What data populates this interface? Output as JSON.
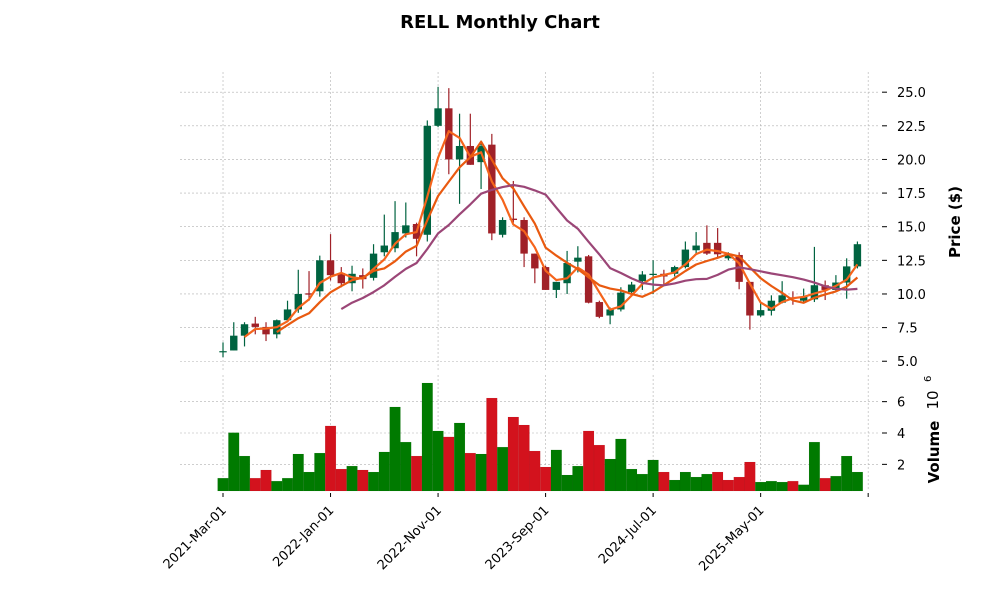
{
  "chart_data": {
    "type": "candlestick",
    "title": "RELL Monthly Chart",
    "ylabel": "Price ($)",
    "volume_label": "Volume",
    "volume_exponent": "10",
    "volume_exponent_power": "6",
    "start_month": "2021-03",
    "ylim": [
      4.2,
      26.5
    ],
    "volume_ylim": [
      0.3,
      7.7
    ],
    "xlim_index": [
      -4,
      61.1
    ],
    "price_ticks": [
      "25.0",
      "22.5",
      "20.0",
      "17.5",
      "15.0",
      "12.5",
      "10.0",
      "7.5",
      "5.0"
    ],
    "volume_ticks": [
      "6",
      "4",
      "2"
    ],
    "x_ticks": [
      {
        "index": 0,
        "label": "2021-Mar-01"
      },
      {
        "index": 10,
        "label": "2022-Jan-01"
      },
      {
        "index": 20,
        "label": "2022-Nov-01"
      },
      {
        "index": 30,
        "label": "2023-Sep-01"
      },
      {
        "index": 40,
        "label": "2024-Jul-01"
      },
      {
        "index": 50,
        "label": "2025-May-01"
      },
      {
        "index": 60,
        "label": ""
      }
    ],
    "moving_averages": [
      3,
      6,
      12
    ],
    "open": [
      5.7,
      5.8,
      6.9,
      7.8,
      7.55,
      7.0,
      8.05,
      8.85,
      10.05,
      10.2,
      12.5,
      11.55,
      10.8,
      11.4,
      11.2,
      13.1,
      13.4,
      14.5,
      15.2,
      14.4,
      22.5,
      23.8,
      20.0,
      21.0,
      19.8,
      21.1,
      14.4,
      15.6,
      15.5,
      13.0,
      12.0,
      10.3,
      10.8,
      12.4,
      12.8,
      9.4,
      8.4,
      8.85,
      10.15,
      10.95,
      11.5,
      11.5,
      11.5,
      12.0,
      13.25,
      13.8,
      13.8,
      12.65,
      12.9,
      10.9,
      8.4,
      8.75,
      9.35,
      9.75,
      9.5,
      9.6,
      10.65,
      10.3,
      10.85,
      12.05
    ],
    "high": [
      6.4,
      7.9,
      7.9,
      8.3,
      7.9,
      8.1,
      9.5,
      11.8,
      11.7,
      12.85,
      14.45,
      12.0,
      12.1,
      11.9,
      13.7,
      15.9,
      16.9,
      16.8,
      15.3,
      22.9,
      25.4,
      25.3,
      23.4,
      23.4,
      21.4,
      21.9,
      15.7,
      18.4,
      15.7,
      13.0,
      12.1,
      10.9,
      13.2,
      13.55,
      12.9,
      9.5,
      9.0,
      10.5,
      10.9,
      11.7,
      12.5,
      11.8,
      12.1,
      13.9,
      14.6,
      15.1,
      14.9,
      13.1,
      13.1,
      10.9,
      9.3,
      9.9,
      10.95,
      10.2,
      10.4,
      13.5,
      11.0,
      11.4,
      12.65,
      13.9
    ],
    "low": [
      5.3,
      5.8,
      6.1,
      7.0,
      6.5,
      6.7,
      7.9,
      8.6,
      9.5,
      9.8,
      11.0,
      10.5,
      10.2,
      10.4,
      11.0,
      12.8,
      13.1,
      14.2,
      12.8,
      13.9,
      22.4,
      18.9,
      16.7,
      19.6,
      17.8,
      14.0,
      14.2,
      15.3,
      12.0,
      10.8,
      10.3,
      9.7,
      10.0,
      11.6,
      9.3,
      8.2,
      7.75,
      8.7,
      10.0,
      10.3,
      10.0,
      10.6,
      11.3,
      11.9,
      13.0,
      12.9,
      12.65,
      12.5,
      10.35,
      7.35,
      8.3,
      8.4,
      9.3,
      9.2,
      9.4,
      9.4,
      9.55,
      10.2,
      9.65,
      11.9
    ],
    "close": [
      5.75,
      6.9,
      7.75,
      7.55,
      7.0,
      8.05,
      8.85,
      10.0,
      9.95,
      12.5,
      11.4,
      10.8,
      11.5,
      11.1,
      13.0,
      13.6,
      14.6,
      15.1,
      14.1,
      22.5,
      23.8,
      20.0,
      21.0,
      19.6,
      21.0,
      14.5,
      15.5,
      15.5,
      13.0,
      11.9,
      10.3,
      10.9,
      12.3,
      12.7,
      9.35,
      8.3,
      8.85,
      10.1,
      10.7,
      11.45,
      11.5,
      11.3,
      12.0,
      13.3,
      13.6,
      13.0,
      12.95,
      13.0,
      10.9,
      8.4,
      8.8,
      9.5,
      9.9,
      9.65,
      9.8,
      10.65,
      10.3,
      10.85,
      12.05,
      13.7
    ],
    "volume_millions": [
      1.12,
      4.02,
      2.53,
      1.12,
      1.64,
      0.93,
      1.12,
      2.66,
      1.51,
      2.72,
      4.45,
      1.7,
      1.89,
      1.64,
      1.51,
      2.79,
      5.66,
      3.42,
      2.53,
      7.19,
      4.13,
      3.75,
      4.64,
      2.72,
      2.66,
      6.23,
      3.1,
      5.02,
      4.51,
      2.85,
      1.83,
      2.92,
      1.32,
      1.89,
      4.13,
      3.23,
      2.34,
      3.62,
      1.7,
      1.38,
      2.28,
      1.51,
      1.0,
      1.51,
      1.19,
      1.38,
      1.51,
      1.0,
      1.19,
      2.15,
      0.87,
      0.93,
      0.87,
      0.93,
      0.7,
      3.42,
      1.12,
      1.25,
      2.53,
      1.51
    ],
    "volume_up": [
      1,
      1,
      1,
      0,
      0,
      1,
      1,
      1,
      1,
      1,
      0,
      0,
      1,
      0,
      1,
      1,
      1,
      1,
      0,
      1,
      1,
      0,
      1,
      0,
      1,
      0,
      1,
      0,
      0,
      0,
      0,
      1,
      1,
      1,
      0,
      0,
      1,
      1,
      1,
      1,
      1,
      0,
      1,
      1,
      1,
      1,
      0,
      0,
      0,
      0,
      1,
      1,
      1,
      0,
      1,
      1,
      0,
      1,
      1,
      1
    ],
    "colors": {
      "candle_up": "#006340",
      "candle_down": "#a02128",
      "volume_up": "#007a00",
      "volume_down": "#d3121d",
      "ma": [
        "#f5641c",
        "#e95a10",
        "#9b4677"
      ]
    }
  }
}
